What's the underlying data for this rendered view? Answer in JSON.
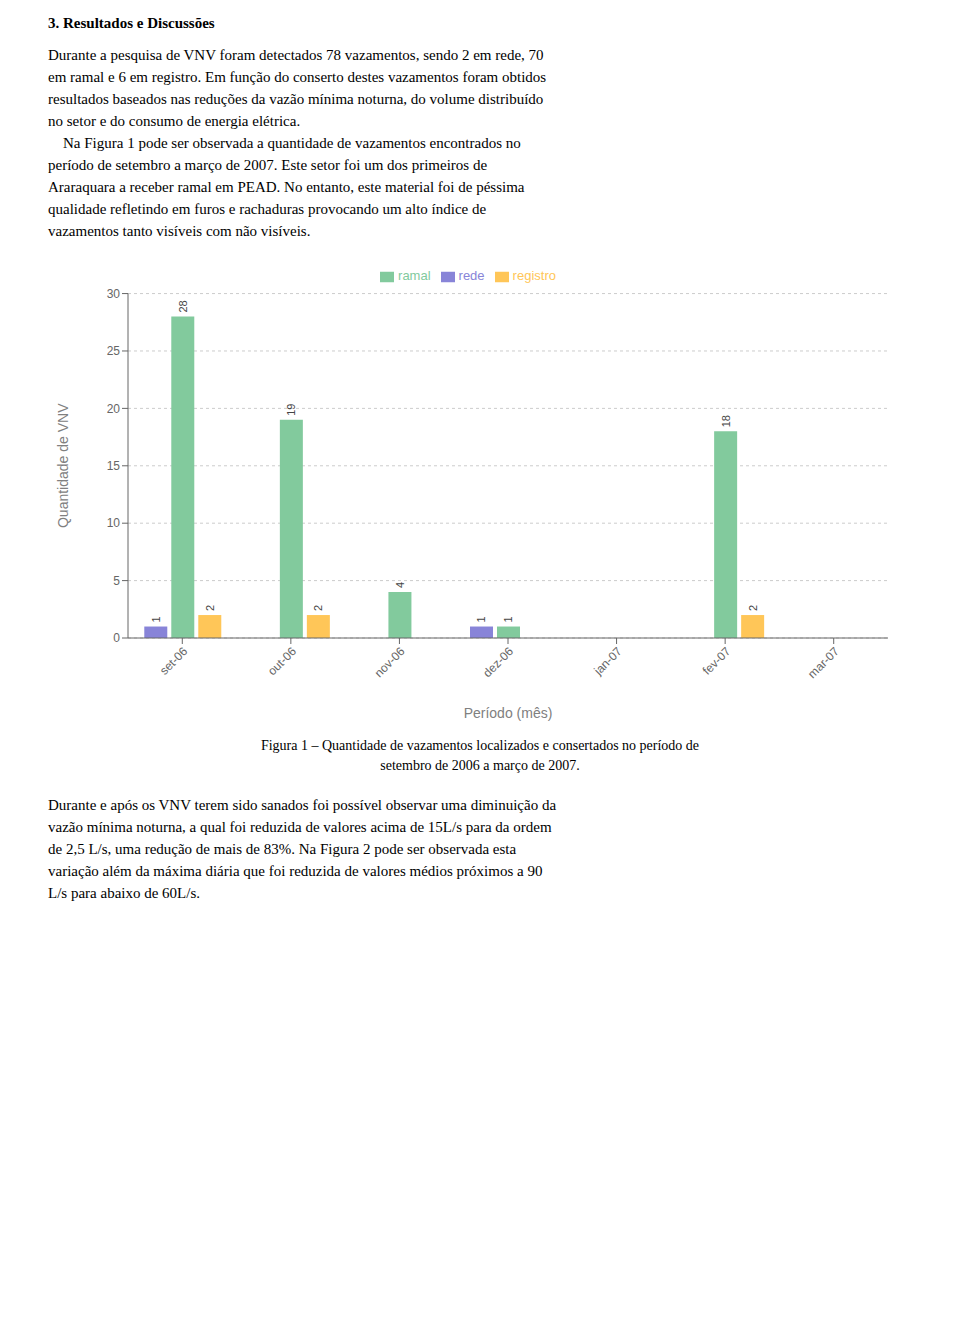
{
  "chart_data": {
    "type": "bar",
    "text_before": {
      "heading": "3. Resultados e Discussões",
      "lines": [
        "Durante a pesquisa de VNV foram detectados 78 vazamentos, sendo 2 em rede, 70",
        "em ramal e 6 em registro. Em função do conserto destes vazamentos foram obtidos",
        "resultados baseados nas reduções da vazão mínima noturna, do volume distribuído",
        "no setor e do consumo de energia elétrica.",
        "    Na Figura 1 pode ser observada a quantidade de vazamentos encontrados no",
        "período de setembro a março de 2007. Este setor foi um dos primeiros de",
        "Araraquara a receber ramal em PEAD. No entanto, este material foi de péssima",
        "qualidade refletindo em furos e rachaduras provocando um alto índice de",
        "vazamentos tanto visíveis com não visíveis."
      ]
    },
    "categories": [
      "set-06",
      "out-06",
      "nov-06",
      "dez-06",
      "jan-07",
      "fev-07",
      "mar-07"
    ],
    "series": [
      {
        "name": "rede",
        "values": [
          1,
          0,
          0,
          1,
          0,
          0,
          0
        ]
      },
      {
        "name": "ramal",
        "values": [
          28,
          19,
          4,
          1,
          0,
          18,
          0
        ]
      },
      {
        "name": "registro",
        "values": [
          2,
          2,
          0,
          0,
          0,
          2,
          0
        ]
      }
    ],
    "xlabel": "Período (mês)",
    "ylabel": "Quantidade de VNV",
    "ylim": [
      0,
      30
    ],
    "yticks": [
      0,
      5,
      10,
      15,
      20,
      25,
      30
    ],
    "grid": true,
    "legend": "upper center",
    "data_labels": true,
    "caption": [
      "Figura 1 – Quantidade de vazamentos localizados e consertados no período de",
      "setembro de 2006 a março de 2007."
    ],
    "text_after": [
      "Durante e após os VNV terem sido sanados foi possível observar uma diminuição da",
      "vazão mínima noturna, a qual foi reduzida de valores acima de 15L/s para da ordem",
      "de 2,5 L/s, uma redução de mais de 83%. Na Figura 2 pode ser observada esta",
      "variação além da máxima diária que foi reduzida de valores médios próximos a 90",
      "L/s para abaixo de 60L/s."
    ]
  }
}
